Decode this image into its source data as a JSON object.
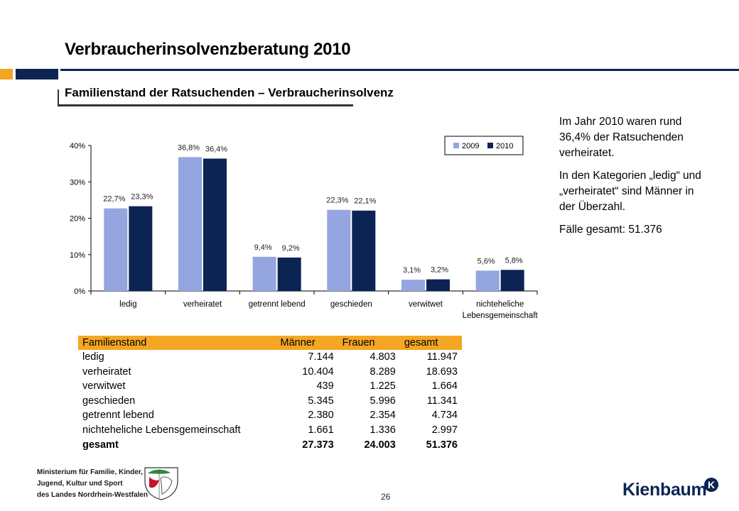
{
  "header": {
    "title": "Verbraucherinsolvenzberatung 2010",
    "subtitle": "Familienstand der Ratsuchenden – Verbraucherinsolvenz"
  },
  "side_text": [
    "Im Jahr 2010 waren rund 36,4% der Ratsuchenden verheiratet.",
    "In den Kategorien „ledig“ und „verheiratet“ sind Männer in der Überzahl.",
    "Fälle gesamt: 51.376"
  ],
  "chart_data": {
    "type": "bar",
    "categories": [
      "ledig",
      "verheiratet",
      "getrennt lebend",
      "geschieden",
      "verwitwet",
      "nichteheliche Lebensgemeinschaft"
    ],
    "category_labels": [
      [
        "ledig"
      ],
      [
        "verheiratet"
      ],
      [
        "getrennt lebend"
      ],
      [
        "geschieden"
      ],
      [
        "verwitwet"
      ],
      [
        "nichteheliche",
        "Lebensgemeinschaft"
      ]
    ],
    "series": [
      {
        "name": "2009",
        "values": [
          22.7,
          36.8,
          9.4,
          22.3,
          3.1,
          5.6
        ],
        "labels": [
          "22,7%",
          "36,8%",
          "9,4%",
          "22,3%",
          "3,1%",
          "5,6%"
        ],
        "color": "#94a5e0"
      },
      {
        "name": "2010",
        "values": [
          23.3,
          36.4,
          9.2,
          22.1,
          3.2,
          5.8
        ],
        "labels": [
          "23,3%",
          "36,4%",
          "9,2%",
          "22,1%",
          "3,2%",
          "5,8%"
        ],
        "color": "#0b2454"
      }
    ],
    "ylim": [
      0,
      40
    ],
    "yticks": [
      0,
      10,
      20,
      30,
      40
    ],
    "ytick_labels": [
      "0%",
      "10%",
      "20%",
      "30%",
      "40%"
    ],
    "grid": false,
    "legend_position": "top-right",
    "title": "",
    "xlabel": "",
    "ylabel": ""
  },
  "table": {
    "headers": [
      "Familienstand",
      "Männer",
      "Frauen",
      "gesamt"
    ],
    "rows": [
      [
        "ledig",
        "7.144",
        "4.803",
        "11.947"
      ],
      [
        "verheiratet",
        "10.404",
        "8.289",
        "18.693"
      ],
      [
        "verwitwet",
        "439",
        "1.225",
        "1.664"
      ],
      [
        "geschieden",
        "5.345",
        "5.996",
        "11.341"
      ],
      [
        "getrennt lebend",
        "2.380",
        "2.354",
        "4.734"
      ],
      [
        "nichteheliche Lebensgemeinschaft",
        "1.661",
        "1.336",
        "2.997"
      ]
    ],
    "total": [
      "gesamt",
      "27.373",
      "24.003",
      "51.376"
    ],
    "header_color": "#f5a623"
  },
  "footer": {
    "ministry_lines": [
      "Ministerium für Familie, Kinder,",
      "Jugend, Kultur und Sport",
      "des Landes Nordrhein-Westfalen"
    ],
    "page_number": "26",
    "logo_text": "Kienbaum",
    "logo_badge": "K"
  },
  "colors": {
    "navy": "#0b2454",
    "orange": "#f5a623",
    "light_blue": "#94a5e0"
  }
}
